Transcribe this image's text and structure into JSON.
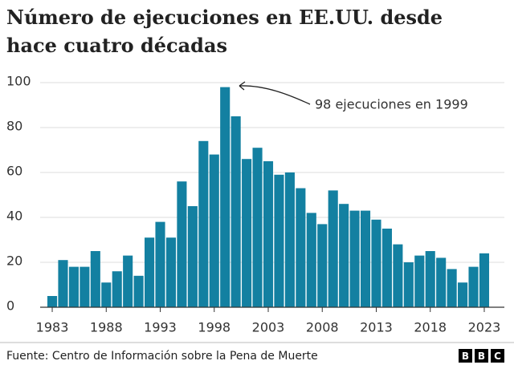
{
  "chart_data": {
    "type": "bar",
    "title": "Número de ejecuciones en EE.UU. desde hace cuatro décadas",
    "categories": [
      "1983",
      null,
      null,
      null,
      null,
      "1988",
      null,
      null,
      null,
      null,
      "1993",
      null,
      null,
      null,
      null,
      "1998",
      null,
      null,
      null,
      null,
      "2003",
      null,
      null,
      null,
      null,
      "2008",
      null,
      null,
      null,
      null,
      "2013",
      null,
      null,
      null,
      null,
      "2018",
      null,
      null,
      null,
      null,
      "2023"
    ],
    "values": [
      5,
      21,
      18,
      18,
      25,
      11,
      16,
      23,
      14,
      31,
      38,
      31,
      56,
      45,
      74,
      68,
      98,
      85,
      66,
      71,
      65,
      59,
      60,
      53,
      42,
      37,
      52,
      46,
      43,
      43,
      39,
      35,
      28,
      20,
      23,
      25,
      22,
      17,
      11,
      18,
      24
    ],
    "color": "#1380a1",
    "ylim": [
      0,
      100
    ],
    "yticks": [
      0,
      20,
      40,
      60,
      80,
      100
    ],
    "grid": true,
    "annotation": "98 ejecuciones en 1999",
    "source": "Fuente: Centro de Información sobre la Pena de Muerte",
    "logo": [
      "B",
      "B",
      "C"
    ]
  }
}
